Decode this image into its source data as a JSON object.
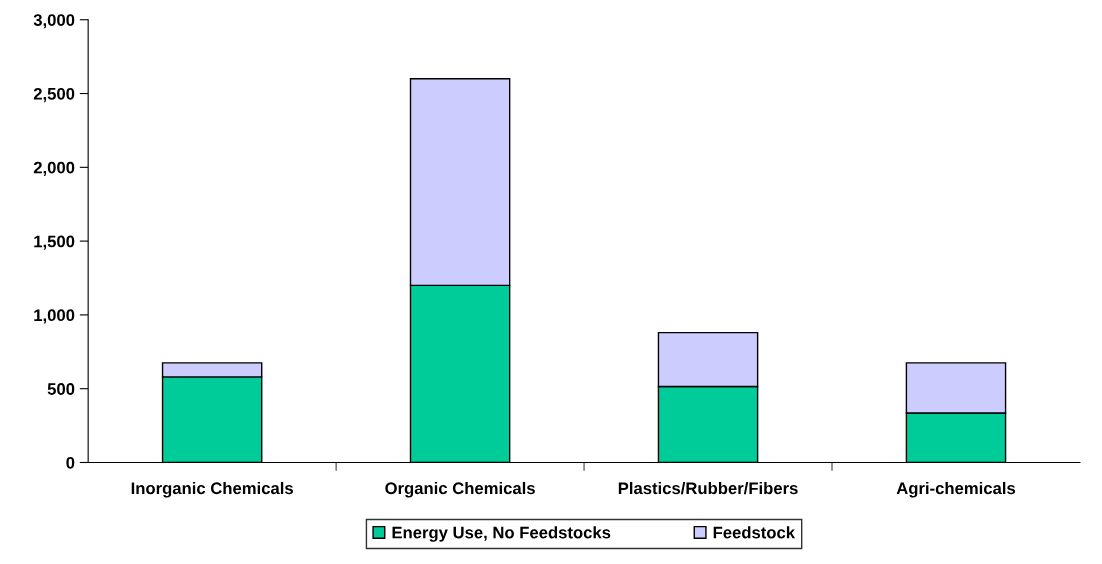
{
  "chart_data": {
    "type": "bar",
    "stacked": true,
    "categories": [
      "Inorganic Chemicals",
      "Organic Chemicals",
      "Plastics/Rubber/Fibers",
      "Agri-chemicals"
    ],
    "series": [
      {
        "name": "Energy Use, No Feedstocks",
        "color": "#00cc99",
        "values": [
          580,
          1200,
          515,
          335
        ]
      },
      {
        "name": "Feedstock",
        "color": "#ccccff",
        "values": [
          95,
          1400,
          365,
          340
        ]
      }
    ],
    "ylim": [
      0,
      3000
    ],
    "yticks": [
      {
        "value": 0,
        "label": "0"
      },
      {
        "value": 500,
        "label": "500"
      },
      {
        "value": 1000,
        "label": "1,000"
      },
      {
        "value": 1500,
        "label": "1,500"
      },
      {
        "value": 2000,
        "label": "2,000"
      },
      {
        "value": 2500,
        "label": "2,500"
      },
      {
        "value": 3000,
        "label": "3,000"
      }
    ],
    "grid": false,
    "legend": "bottom"
  }
}
